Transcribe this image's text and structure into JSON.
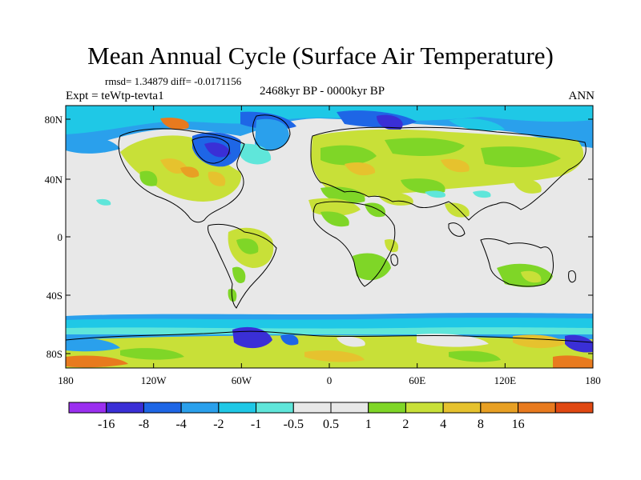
{
  "title": "Mean Annual Cycle (Surface Air Temperature)",
  "stats_line": "rmsd= 1.34879 diff= -0.0171156",
  "experiment": "Expt = teWtp-tevta1",
  "period": "2468kyr BP - 0000kyr BP",
  "season": "ANN",
  "lat_ticks": [
    "80N",
    "40N",
    "0",
    "40S",
    "80S"
  ],
  "lon_ticks": [
    "180",
    "120W",
    "60W",
    "0",
    "60E",
    "120E",
    "180"
  ],
  "colorbar": {
    "colors": [
      "#9b2ff0",
      "#3a2fd6",
      "#1e66e6",
      "#2aa0ec",
      "#1fc8e6",
      "#5fe6da",
      "#e8e8e8",
      "#e8e8e8",
      "#7fd627",
      "#c8e038",
      "#e6c22e",
      "#e8a024",
      "#e87a1e",
      "#e04812"
    ],
    "labels": [
      "-16",
      "-8",
      "-4",
      "-2",
      "-1",
      "-0.5",
      "0.5",
      "1",
      "2",
      "4",
      "8",
      "16"
    ]
  }
}
